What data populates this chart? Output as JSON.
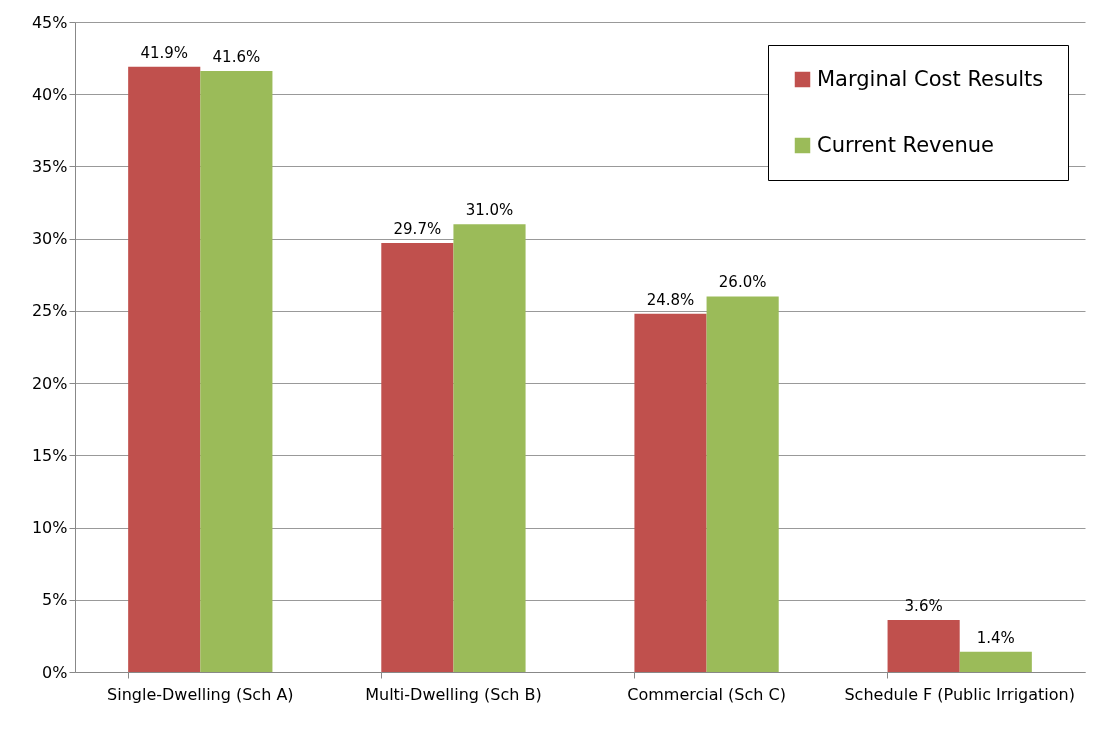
{
  "chart_data": {
    "type": "bar",
    "categories": [
      "Single-Dwelling (Sch A)",
      "Multi-Dwelling (Sch B)",
      "Commercial (Sch C)",
      "Schedule F (Public Irrigation)"
    ],
    "series": [
      {
        "name": "Marginal Cost Results",
        "color": "#c0504d",
        "values": [
          41.9,
          29.7,
          24.8,
          3.6
        ],
        "value_labels": [
          "41.9%",
          "29.7%",
          "24.8%",
          "3.6%"
        ]
      },
      {
        "name": "Current Revenue",
        "color": "#9bbb59",
        "values": [
          41.6,
          31.0,
          26.0,
          1.4
        ],
        "value_labels": [
          "41.6%",
          "31.0%",
          "26.0%",
          "1.4%"
        ]
      }
    ],
    "ylim": [
      0,
      45
    ],
    "yticks": [
      {
        "value": 0,
        "label": "0%"
      },
      {
        "value": 5,
        "label": "5%"
      },
      {
        "value": 10,
        "label": "10%"
      },
      {
        "value": 15,
        "label": "15%"
      },
      {
        "value": 20,
        "label": "20%"
      },
      {
        "value": 25,
        "label": "25%"
      },
      {
        "value": 30,
        "label": "30%"
      },
      {
        "value": 35,
        "label": "35%"
      },
      {
        "value": 40,
        "label": "40%"
      },
      {
        "value": 45,
        "label": "45%"
      }
    ],
    "grid": "y",
    "legend": "top right"
  }
}
